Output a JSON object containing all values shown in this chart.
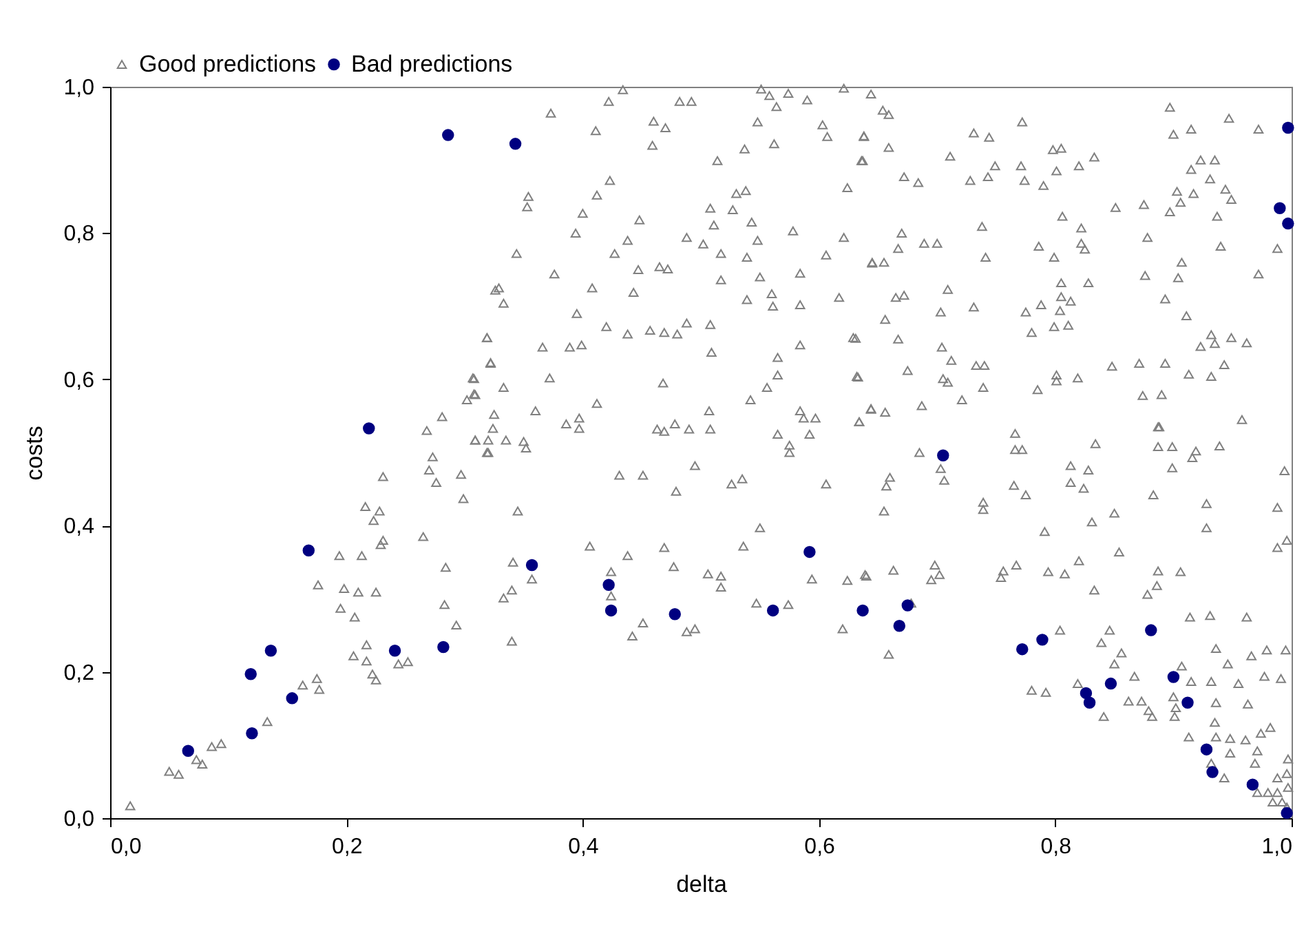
{
  "chart_data": {
    "type": "scatter",
    "xlabel": "delta",
    "ylabel": "costs",
    "legend": "top",
    "grid": false,
    "xlim": [
      0,
      1
    ],
    "ylim": [
      0,
      1
    ],
    "xticks": [
      {
        "value": 0,
        "label": "0,0"
      },
      {
        "value": 0.2,
        "label": "0,2"
      },
      {
        "value": 0.4,
        "label": "0,4"
      },
      {
        "value": 0.6,
        "label": "0,6"
      },
      {
        "value": 0.8,
        "label": "0,8"
      },
      {
        "value": 1,
        "label": "1,0"
      }
    ],
    "yticks": [
      {
        "value": 0,
        "label": "0,0"
      },
      {
        "value": 0.2,
        "label": "0,2"
      },
      {
        "value": 0.4,
        "label": "0,4"
      },
      {
        "value": 0.6,
        "label": "0,6"
      },
      {
        "value": 0.8,
        "label": "0,8"
      },
      {
        "value": 1,
        "label": "1,0"
      }
    ],
    "series": [
      {
        "name": "Good predictions",
        "color": "#808080",
        "marker": "triangle",
        "x": [
          0.017,
          0.05,
          0.058,
          0.073,
          0.078,
          0.086,
          0.094,
          0.133,
          0.163,
          0.175,
          0.177,
          0.176,
          0.194,
          0.198,
          0.195,
          0.207,
          0.21,
          0.213,
          0.225,
          0.206,
          0.217,
          0.217,
          0.222,
          0.225,
          0.244,
          0.252,
          0.216,
          0.223,
          0.228,
          0.229,
          0.231,
          0.231,
          0.265,
          0.268,
          0.27,
          0.273,
          0.276,
          0.281,
          0.284,
          0.283,
          0.293,
          0.299,
          0.297,
          0.302,
          0.307,
          0.308,
          0.309,
          0.319,
          0.319,
          0.322,
          0.326,
          0.373,
          0.422,
          0.434,
          0.411,
          0.354,
          0.353,
          0.423,
          0.412,
          0.4,
          0.394,
          0.448,
          0.438,
          0.427,
          0.344,
          0.376,
          0.408,
          0.329,
          0.333,
          0.395,
          0.447,
          0.465,
          0.472,
          0.46,
          0.47,
          0.459,
          0.482,
          0.492,
          0.514,
          0.508,
          0.511,
          0.53,
          0.538,
          0.527,
          0.543,
          0.488,
          0.502,
          0.517,
          0.517,
          0.443,
          0.539,
          0.548,
          0.55,
          0.539,
          0.56,
          0.561,
          0.551,
          0.558,
          0.564,
          0.574,
          0.548,
          0.537,
          0.562,
          0.59,
          0.603,
          0.607,
          0.621,
          0.638,
          0.637,
          0.624,
          0.578,
          0.621,
          0.606,
          0.584,
          0.617,
          0.584,
          0.645,
          0.319,
          0.366,
          0.389,
          0.399,
          0.42,
          0.438,
          0.457,
          0.469,
          0.48,
          0.488,
          0.508,
          0.509,
          0.322,
          0.308,
          0.309,
          0.333,
          0.372,
          0.468,
          0.542,
          0.556,
          0.565,
          0.565,
          0.584,
          0.629,
          0.632,
          0.325,
          0.324,
          0.36,
          0.412,
          0.386,
          0.397,
          0.397,
          0.309,
          0.32,
          0.335,
          0.32,
          0.35,
          0.352,
          0.463,
          0.469,
          0.478,
          0.49,
          0.507,
          0.508,
          0.565,
          0.575,
          0.575,
          0.584,
          0.587,
          0.597,
          0.592,
          0.634,
          0.644,
          0.431,
          0.451,
          0.495,
          0.479,
          0.526,
          0.535,
          0.606,
          0.345,
          0.55,
          0.406,
          0.469,
          0.536,
          0.438,
          0.341,
          0.357,
          0.477,
          0.424,
          0.424,
          0.34,
          0.333,
          0.506,
          0.517,
          0.517,
          0.594,
          0.624,
          0.64,
          0.547,
          0.574,
          0.451,
          0.442,
          0.488,
          0.495,
          0.62,
          0.34,
          0.644,
          0.654,
          0.659,
          0.638,
          0.659,
          0.636,
          0.672,
          0.684,
          0.711,
          0.731,
          0.744,
          0.772,
          0.771,
          0.749,
          0.728,
          0.743,
          0.774,
          0.79,
          0.798,
          0.805,
          0.801,
          0.82,
          0.833,
          0.851,
          0.875,
          0.806,
          0.822,
          0.825,
          0.822,
          0.786,
          0.799,
          0.878,
          0.897,
          0.9,
          0.915,
          0.947,
          0.972,
          0.923,
          0.935,
          0.915,
          0.931,
          0.903,
          0.917,
          0.897,
          0.906,
          0.944,
          0.949,
          0.937,
          0.94,
          0.988,
          0.972,
          0.907,
          0.904,
          0.876,
          0.893,
          0.911,
          0.738,
          0.741,
          0.67,
          0.667,
          0.689,
          0.7,
          0.645,
          0.655,
          0.805,
          0.828,
          0.805,
          0.813,
          0.788,
          0.775,
          0.804,
          0.799,
          0.811,
          0.78,
          0.709,
          0.731,
          0.703,
          0.665,
          0.672,
          0.656,
          0.667,
          0.704,
          0.712,
          0.631,
          0.633,
          0.675,
          0.705,
          0.709,
          0.733,
          0.74,
          0.739,
          0.721,
          0.687,
          0.644,
          0.656,
          0.634,
          0.801,
          0.801,
          0.819,
          0.785,
          0.848,
          0.871,
          0.893,
          0.913,
          0.932,
          0.943,
          0.923,
          0.932,
          0.935,
          0.949,
          0.962,
          0.874,
          0.89,
          0.888,
          0.958,
          0.685,
          0.703,
          0.706,
          0.66,
          0.657,
          0.655,
          0.766,
          0.766,
          0.772,
          0.765,
          0.775,
          0.739,
          0.739,
          0.791,
          0.813,
          0.828,
          0.813,
          0.824,
          0.834,
          0.831,
          0.85,
          0.854,
          0.883,
          0.887,
          0.887,
          0.899,
          0.899,
          0.916,
          0.919,
          0.939,
          0.928,
          0.928,
          0.994,
          0.988,
          0.996,
          0.988,
          0.639,
          0.663,
          0.698,
          0.702,
          0.695,
          0.754,
          0.756,
          0.767,
          0.794,
          0.808,
          0.82,
          0.833,
          0.887,
          0.906,
          0.886,
          0.878,
          0.678,
          0.659,
          0.804,
          0.846,
          0.839,
          0.856,
          0.85,
          0.78,
          0.792,
          0.819,
          0.841,
          0.867,
          0.862,
          0.873,
          0.879,
          0.882,
          0.901,
          0.9,
          0.902,
          0.907,
          0.915,
          0.914,
          0.931,
          0.962,
          0.936,
          0.946,
          0.932,
          0.955,
          0.966,
          0.979,
          0.995,
          0.977,
          0.991,
          0.936,
          0.963,
          0.935,
          0.913,
          0.936,
          0.948,
          0.948,
          0.961,
          0.974,
          0.982,
          0.971,
          0.969,
          0.943,
          0.932,
          0.997,
          0.996,
          0.988,
          0.997,
          0.98,
          0.988,
          0.984,
          0.992,
          0.996,
          0.971
        ],
        "values": [
          0.017,
          0.064,
          0.06,
          0.08,
          0.074,
          0.098,
          0.102,
          0.132,
          0.182,
          0.191,
          0.176,
          0.319,
          0.359,
          0.314,
          0.287,
          0.275,
          0.309,
          0.359,
          0.309,
          0.222,
          0.237,
          0.215,
          0.197,
          0.189,
          0.211,
          0.214,
          0.426,
          0.407,
          0.42,
          0.374,
          0.38,
          0.467,
          0.385,
          0.53,
          0.476,
          0.494,
          0.459,
          0.549,
          0.343,
          0.292,
          0.264,
          0.437,
          0.47,
          0.572,
          0.602,
          0.58,
          0.517,
          0.5,
          0.657,
          0.623,
          0.722,
          0.964,
          0.98,
          0.996,
          0.94,
          0.85,
          0.836,
          0.872,
          0.852,
          0.827,
          0.8,
          0.818,
          0.79,
          0.772,
          0.772,
          0.744,
          0.725,
          0.725,
          0.704,
          0.69,
          0.75,
          0.754,
          0.751,
          0.953,
          0.944,
          0.92,
          0.98,
          0.98,
          0.899,
          0.834,
          0.811,
          0.854,
          0.858,
          0.832,
          0.815,
          0.794,
          0.785,
          0.772,
          0.736,
          0.719,
          0.767,
          0.79,
          0.74,
          0.709,
          0.717,
          0.7,
          0.997,
          0.988,
          0.973,
          0.991,
          0.952,
          0.915,
          0.922,
          0.982,
          0.948,
          0.932,
          0.998,
          0.932,
          0.899,
          0.862,
          0.803,
          0.794,
          0.77,
          0.745,
          0.712,
          0.702,
          0.76,
          0.657,
          0.644,
          0.644,
          0.647,
          0.672,
          0.662,
          0.667,
          0.664,
          0.662,
          0.677,
          0.675,
          0.637,
          0.622,
          0.601,
          0.579,
          0.589,
          0.602,
          0.595,
          0.572,
          0.589,
          0.606,
          0.63,
          0.647,
          0.657,
          0.604,
          0.552,
          0.533,
          0.557,
          0.567,
          0.539,
          0.547,
          0.533,
          0.517,
          0.517,
          0.517,
          0.5,
          0.515,
          0.506,
          0.532,
          0.529,
          0.539,
          0.532,
          0.557,
          0.532,
          0.525,
          0.51,
          0.5,
          0.557,
          0.547,
          0.547,
          0.525,
          0.542,
          0.56,
          0.469,
          0.469,
          0.482,
          0.447,
          0.457,
          0.464,
          0.457,
          0.42,
          0.397,
          0.372,
          0.37,
          0.372,
          0.359,
          0.35,
          0.327,
          0.344,
          0.337,
          0.304,
          0.312,
          0.301,
          0.334,
          0.331,
          0.316,
          0.327,
          0.325,
          0.331,
          0.294,
          0.292,
          0.267,
          0.249,
          0.255,
          0.259,
          0.259,
          0.242,
          0.99,
          0.968,
          0.962,
          0.933,
          0.917,
          0.899,
          0.877,
          0.869,
          0.905,
          0.937,
          0.931,
          0.952,
          0.892,
          0.892,
          0.872,
          0.877,
          0.872,
          0.865,
          0.914,
          0.916,
          0.885,
          0.892,
          0.904,
          0.835,
          0.839,
          0.823,
          0.807,
          0.778,
          0.786,
          0.782,
          0.767,
          0.794,
          0.972,
          0.935,
          0.942,
          0.957,
          0.942,
          0.9,
          0.9,
          0.887,
          0.874,
          0.857,
          0.854,
          0.829,
          0.842,
          0.86,
          0.846,
          0.823,
          0.782,
          0.779,
          0.744,
          0.76,
          0.739,
          0.742,
          0.71,
          0.687,
          0.809,
          0.767,
          0.8,
          0.779,
          0.786,
          0.786,
          0.759,
          0.76,
          0.732,
          0.732,
          0.713,
          0.707,
          0.702,
          0.692,
          0.694,
          0.672,
          0.674,
          0.664,
          0.723,
          0.699,
          0.692,
          0.712,
          0.715,
          0.682,
          0.655,
          0.644,
          0.626,
          0.656,
          0.603,
          0.612,
          0.601,
          0.596,
          0.619,
          0.619,
          0.589,
          0.572,
          0.564,
          0.559,
          0.555,
          0.542,
          0.606,
          0.598,
          0.602,
          0.586,
          0.618,
          0.622,
          0.622,
          0.607,
          0.604,
          0.62,
          0.645,
          0.661,
          0.649,
          0.657,
          0.65,
          0.578,
          0.579,
          0.535,
          0.545,
          0.5,
          0.478,
          0.462,
          0.466,
          0.454,
          0.42,
          0.526,
          0.504,
          0.504,
          0.455,
          0.442,
          0.432,
          0.422,
          0.392,
          0.482,
          0.476,
          0.459,
          0.451,
          0.512,
          0.405,
          0.417,
          0.364,
          0.442,
          0.535,
          0.508,
          0.508,
          0.479,
          0.493,
          0.502,
          0.509,
          0.43,
          0.397,
          0.475,
          0.425,
          0.38,
          0.37,
          0.333,
          0.339,
          0.346,
          0.333,
          0.326,
          0.329,
          0.338,
          0.346,
          0.337,
          0.334,
          0.352,
          0.312,
          0.338,
          0.337,
          0.318,
          0.306,
          0.294,
          0.224,
          0.257,
          0.257,
          0.24,
          0.226,
          0.211,
          0.175,
          0.172,
          0.184,
          0.139,
          0.194,
          0.16,
          0.16,
          0.147,
          0.139,
          0.139,
          0.166,
          0.151,
          0.208,
          0.187,
          0.275,
          0.277,
          0.275,
          0.232,
          0.211,
          0.187,
          0.184,
          0.222,
          0.23,
          0.23,
          0.194,
          0.191,
          0.158,
          0.156,
          0.131,
          0.111,
          0.111,
          0.109,
          0.089,
          0.107,
          0.116,
          0.124,
          0.092,
          0.075,
          0.055,
          0.075,
          0.081,
          0.061,
          0.055,
          0.042,
          0.035,
          0.035,
          0.022,
          0.022,
          0.015,
          0.035
        ]
      },
      {
        "name": "Bad predictions",
        "color": "#000080",
        "marker": "circle",
        "x": [
          0.286,
          0.219,
          0.168,
          0.136,
          0.119,
          0.12,
          0.154,
          0.066,
          0.241,
          0.282,
          0.343,
          0.357,
          0.422,
          0.424,
          0.478,
          0.561,
          0.592,
          0.637,
          0.675,
          0.668,
          0.705,
          0.772,
          0.789,
          0.826,
          0.829,
          0.847,
          0.881,
          0.9,
          0.912,
          0.928,
          0.933,
          0.967,
          0.996,
          0.997,
          0.99,
          0.997
        ],
        "values": [
          0.934,
          0.533,
          0.366,
          0.229,
          0.197,
          0.116,
          0.164,
          0.092,
          0.229,
          0.234,
          0.922,
          0.346,
          0.319,
          0.284,
          0.279,
          0.284,
          0.364,
          0.284,
          0.291,
          0.263,
          0.496,
          0.231,
          0.244,
          0.171,
          0.158,
          0.184,
          0.257,
          0.193,
          0.158,
          0.094,
          0.063,
          0.046,
          0.007,
          0.944,
          0.834,
          0.813
        ]
      }
    ]
  }
}
